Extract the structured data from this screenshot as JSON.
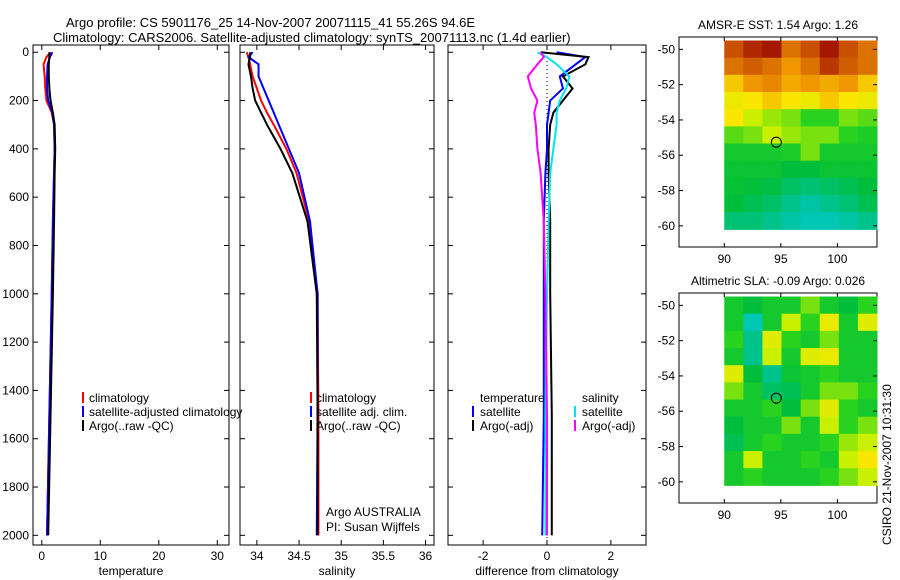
{
  "title": {
    "line1": "Argo profile: CS 5901176_25 14-Nov-2007 20071115_41 55.26S 94.6E",
    "line2": "Climatology: CARS2006. Satellite-adjusted climatology: synTS_20071113.nc (1.4d earlier)"
  },
  "credit": {
    "line1": "Argo AUSTRALIA",
    "line2": "PI: Susan Wijffels"
  },
  "timestamp": "CSIRO 21-Nov-2007 10:31:30",
  "colors": {
    "climatology": "#ff0000",
    "satellite": "#0000ff",
    "argo": "#000000",
    "sal_satellite": "#00e5ee",
    "sal_argo": "#ff00ff"
  },
  "chart_data": [
    {
      "type": "line",
      "name": "temperature",
      "xlabel": "temperature",
      "ylabel": "",
      "xlim": [
        -1.5,
        32
      ],
      "ylim": [
        2000,
        0
      ],
      "xticks": [
        0,
        10,
        20,
        30
      ],
      "yticks": [
        0,
        200,
        400,
        600,
        800,
        1000,
        1200,
        1400,
        1600,
        1800,
        2000
      ],
      "legend": [
        "climatology",
        "satellite-adjusted climatology",
        "Argo(..raw -QC)"
      ],
      "legend_placement": "center-left",
      "depth": [
        0,
        20,
        50,
        100,
        150,
        200,
        250,
        300,
        400,
        500,
        700,
        1000,
        1500,
        2000
      ],
      "series": [
        {
          "name": "climatology",
          "color": "#ff0000",
          "values": [
            1.5,
            0.8,
            0.3,
            0.5,
            0.6,
            0.8,
            1.7,
            2.1,
            2.2,
            2.1,
            1.9,
            1.7,
            1.3,
            0.9
          ]
        },
        {
          "name": "satellite-adjusted climatology",
          "color": "#0000ff",
          "values": [
            1.8,
            1.4,
            1.0,
            0.9,
            0.9,
            1.1,
            1.8,
            2.1,
            2.2,
            2.1,
            1.9,
            1.7,
            1.3,
            0.9
          ]
        },
        {
          "name": "Argo(..raw -QC)",
          "color": "#000000",
          "values": [
            1.3,
            1.3,
            1.2,
            1.2,
            1.3,
            1.5,
            1.9,
            2.2,
            2.3,
            2.2,
            2.1,
            1.9,
            1.5,
            1.1
          ]
        }
      ]
    },
    {
      "type": "line",
      "name": "salinity",
      "xlabel": "salinity",
      "xlim": [
        33.8,
        36.1
      ],
      "ylim": [
        2000,
        0
      ],
      "xticks": [
        34,
        34.5,
        35,
        35.5,
        36
      ],
      "legend": [
        "climatology",
        "satellite adj. clim.",
        "Argo(..raw -QC)"
      ],
      "legend_placement": "center-right",
      "depth": [
        0,
        20,
        50,
        100,
        150,
        200,
        250,
        300,
        400,
        500,
        700,
        1000,
        1500,
        2000
      ],
      "series": [
        {
          "name": "climatology",
          "color": "#ff0000",
          "values": [
            33.88,
            33.9,
            33.92,
            33.95,
            34.0,
            34.05,
            34.12,
            34.2,
            34.35,
            34.47,
            34.62,
            34.72,
            34.73,
            34.73
          ]
        },
        {
          "name": "satellite adj. clim.",
          "color": "#0000ff",
          "values": [
            33.95,
            33.9,
            34.02,
            34.02,
            34.08,
            34.14,
            34.2,
            34.26,
            34.38,
            34.5,
            34.63,
            34.72,
            34.72,
            34.71
          ]
        },
        {
          "name": "Argo(..raw -QC)",
          "color": "#000000",
          "values": [
            33.92,
            33.92,
            33.9,
            33.93,
            33.95,
            33.98,
            34.05,
            34.12,
            34.28,
            34.42,
            34.6,
            34.71,
            34.72,
            34.72
          ]
        }
      ]
    },
    {
      "type": "line",
      "name": "difference",
      "xlabel": "difference from climatology",
      "xlim": [
        -3.1,
        3.1
      ],
      "ylim": [
        2000,
        0
      ],
      "xticks": [
        -2,
        0,
        2
      ],
      "legend_temperature": {
        "heading": "temperature",
        "items": [
          "satellite",
          "Argo(-adj)"
        ]
      },
      "legend_salinity": {
        "heading": "salinity",
        "items": [
          "satellite",
          "Argo(-adj)"
        ]
      },
      "legend_placement": "center",
      "depth": [
        0,
        20,
        50,
        100,
        150,
        200,
        250,
        300,
        400,
        500,
        700,
        1000,
        1500,
        2000
      ],
      "series": [
        {
          "name": "temperature satellite",
          "color": "#0000ff",
          "values": [
            0.3,
            1.2,
            0.9,
            0.4,
            0.5,
            0.1,
            0.05,
            0.0,
            0.0,
            -0.05,
            -0.1,
            -0.1,
            -0.1,
            -0.15
          ]
        },
        {
          "name": "temperature Argo(-adj)",
          "color": "#000000",
          "values": [
            -0.2,
            1.3,
            1.2,
            0.5,
            0.8,
            0.5,
            0.2,
            0.1,
            0.05,
            0.05,
            0.1,
            0.1,
            0.15,
            0.15
          ]
        },
        {
          "name": "salinity satellite",
          "color": "#00e5ee",
          "values": [
            -0.3,
            0.0,
            0.3,
            0.7,
            0.6,
            0.4,
            0.3,
            0.3,
            0.2,
            0.1,
            0.05,
            0.0,
            -0.05,
            -0.05
          ]
        },
        {
          "name": "salinity Argo(-adj)",
          "color": "#ff00ff",
          "values": [
            -0.2,
            -0.1,
            -0.3,
            -0.6,
            -0.5,
            -0.3,
            -0.4,
            -0.35,
            -0.3,
            -0.2,
            -0.1,
            -0.05,
            0.0,
            0.0
          ]
        }
      ]
    },
    {
      "type": "heatmap",
      "name": "sst-map",
      "title": "AMSR-E SST: 1.54 Argo: 1.26",
      "xlim": [
        86,
        103.5
      ],
      "ylim": [
        -61.2,
        -49.3
      ],
      "xticks": [
        90,
        95,
        100
      ],
      "yticks": [
        -50,
        -52,
        -54,
        -56,
        -58,
        -60
      ],
      "lon_range": [
        90,
        103.5
      ],
      "lat_range": [
        -49.5,
        -60.2
      ],
      "marker": {
        "lon": 94.6,
        "lat": -55.26
      },
      "grid": [
        [
          0.9,
          0.95,
          0.97,
          0.85,
          0.9,
          0.97,
          0.9,
          0.85
        ],
        [
          0.85,
          0.88,
          0.85,
          0.8,
          0.85,
          0.93,
          0.88,
          0.85
        ],
        [
          0.75,
          0.8,
          0.82,
          0.78,
          0.8,
          0.78,
          0.8,
          0.75
        ],
        [
          0.7,
          0.72,
          0.75,
          0.72,
          0.7,
          0.75,
          0.72,
          0.7
        ],
        [
          0.72,
          0.65,
          0.62,
          0.6,
          0.55,
          0.55,
          0.6,
          0.58
        ],
        [
          0.58,
          0.6,
          0.65,
          0.62,
          0.6,
          0.6,
          0.55,
          0.52
        ],
        [
          0.5,
          0.5,
          0.5,
          0.52,
          0.6,
          0.5,
          0.5,
          0.5
        ],
        [
          0.48,
          0.48,
          0.48,
          0.45,
          0.45,
          0.48,
          0.48,
          0.48
        ],
        [
          0.47,
          0.46,
          0.44,
          0.4,
          0.38,
          0.4,
          0.42,
          0.45
        ],
        [
          0.45,
          0.42,
          0.4,
          0.35,
          0.32,
          0.35,
          0.38,
          0.42
        ],
        [
          0.38,
          0.38,
          0.35,
          0.32,
          0.3,
          0.3,
          0.32,
          0.35
        ]
      ]
    },
    {
      "type": "heatmap",
      "name": "sla-map",
      "title": "Altimetric SLA: -0.09 Argo: 0.026",
      "xlim": [
        86,
        103.5
      ],
      "ylim": [
        -61.2,
        -49.3
      ],
      "xticks": [
        90,
        95,
        100
      ],
      "yticks": [
        -50,
        -52,
        -54,
        -56,
        -58,
        -60
      ],
      "lon_range": [
        90,
        103.5
      ],
      "lat_range": [
        -49.5,
        -60.2
      ],
      "marker": {
        "lon": 94.6,
        "lat": -55.26
      },
      "grid": [
        [
          0.5,
          0.45,
          0.5,
          0.5,
          0.6,
          0.5,
          0.45,
          0.55
        ],
        [
          0.5,
          0.3,
          0.5,
          0.65,
          0.55,
          0.7,
          0.5,
          0.68
        ],
        [
          0.55,
          0.35,
          0.68,
          0.55,
          0.5,
          0.6,
          0.5,
          0.5
        ],
        [
          0.5,
          0.35,
          0.65,
          0.5,
          0.68,
          0.7,
          0.5,
          0.5
        ],
        [
          0.68,
          0.45,
          0.35,
          0.48,
          0.5,
          0.55,
          0.5,
          0.5
        ],
        [
          0.6,
          0.5,
          0.4,
          0.42,
          0.5,
          0.6,
          0.6,
          0.55
        ],
        [
          0.5,
          0.5,
          0.55,
          0.45,
          0.6,
          0.68,
          0.55,
          0.5
        ],
        [
          0.45,
          0.5,
          0.5,
          0.6,
          0.5,
          0.65,
          0.55,
          0.6
        ],
        [
          0.42,
          0.5,
          0.55,
          0.5,
          0.5,
          0.55,
          0.62,
          0.65
        ],
        [
          0.5,
          0.65,
          0.5,
          0.5,
          0.55,
          0.5,
          0.65,
          0.72
        ],
        [
          0.5,
          0.55,
          0.5,
          0.5,
          0.5,
          0.55,
          0.6,
          0.65
        ]
      ]
    }
  ]
}
